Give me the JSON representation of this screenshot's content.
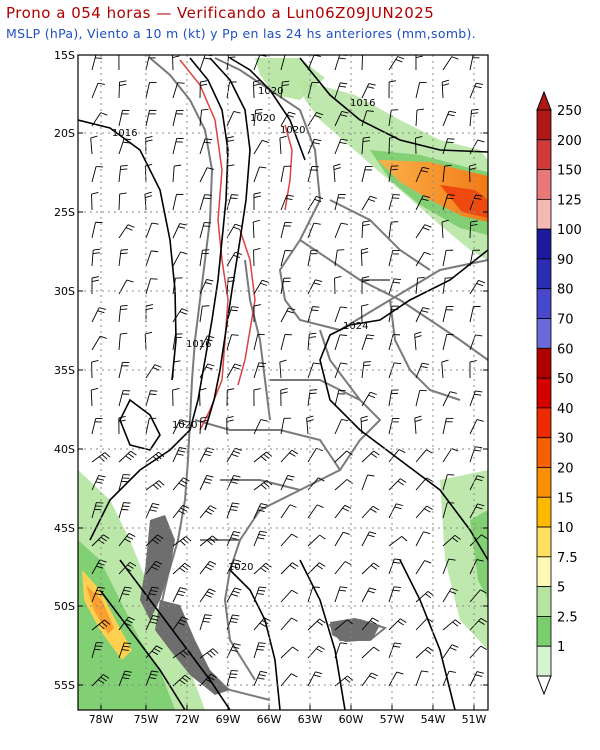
{
  "title_line1": "Prono a 054 horas — Verificando a Lun06Z09JUN2025",
  "title_line2": "MSLP (hPa), Viento a 10 m (kt) y Pp en las 24 hs anteriores (mm,somb).",
  "lat_ticks": [
    "15S",
    "20S",
    "25S",
    "30S",
    "35S",
    "40S",
    "45S",
    "50S",
    "55S"
  ],
  "lon_ticks": [
    "78W",
    "75W",
    "72W",
    "69W",
    "66W",
    "63W",
    "60W",
    "57W",
    "54W",
    "51W"
  ],
  "isobar_labels": [
    "1020",
    "1020",
    "1020",
    "1016",
    "1016",
    "1024",
    "1016",
    "1020",
    "1020"
  ],
  "colorbar": {
    "levels": [
      "250",
      "200",
      "150",
      "125",
      "100",
      "90",
      "80",
      "70",
      "60",
      "50",
      "40",
      "30",
      "20",
      "15",
      "10",
      "7.5",
      "5",
      "2.5",
      "1"
    ],
    "colors": [
      "#b01818",
      "#d03a3a",
      "#e8787a",
      "#f6b7b7",
      "#1a1a9a",
      "#2d2db4",
      "#4848cc",
      "#6a6ad8",
      "#b00000",
      "#d40000",
      "#ee2a00",
      "#f46000",
      "#fa9000",
      "#ffb800",
      "#ffe060",
      "#fff8b8",
      "#b4e4a0",
      "#7ccd6e",
      "#d6f3d0"
    ]
  },
  "colors": {
    "title": "#b00000",
    "subtitle": "#1f4fc2",
    "isobar": "#000000",
    "coast": "#7a7a7a",
    "topo_line": "#e04040"
  }
}
